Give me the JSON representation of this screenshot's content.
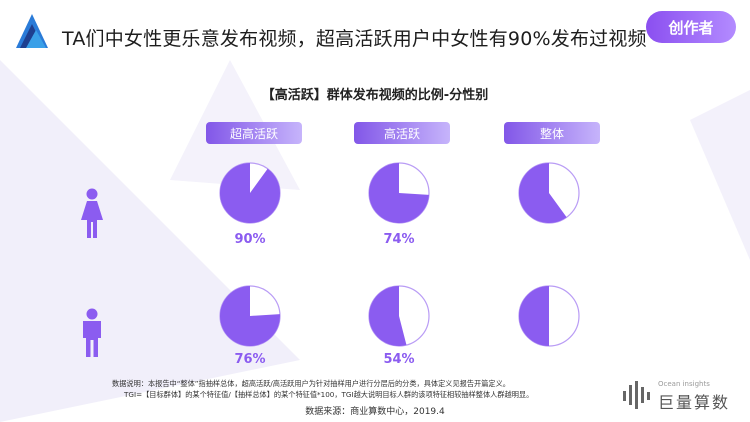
{
  "header": {
    "headline": "TA们中女性更乐意发布视频，超高活跃用户中女性有90%发布过视频",
    "badge": "创作者"
  },
  "chart_data": {
    "type": "pie",
    "title": "【高活跃】群体发布视频的比例-分性别",
    "columns": [
      "超高活跃",
      "高活跃",
      "整体"
    ],
    "rows": [
      {
        "gender": "female-icon",
        "values": [
          90,
          74,
          60
        ],
        "labels": [
          "90%",
          "74%",
          ""
        ]
      },
      {
        "gender": "male-icon",
        "values": [
          76,
          54,
          50
        ],
        "labels": [
          "76%",
          "54%",
          ""
        ]
      }
    ],
    "slice_color": "#8b5cf0",
    "remainder_color": "#ffffff",
    "outline_color": "#b99cf5",
    "label_color": "#8b5cf0"
  },
  "footer": {
    "note_line1": "数据说明：本报告中“整体”指抽样总体，超高活跃/高活跃用户为针对抽样用户进行分层后的分类，具体定义见报告开篇定义。",
    "note_line2": "TGI=【目标群体】的某个特征值/【抽样总体】的某个特征值*100，TGI越大说明目标人群的该项特征相较抽样整体人群越明显。",
    "source": "数据来源：商业算数中心，2019.4",
    "brand_sub": "Ocean insights",
    "brand_name": "巨量算数"
  },
  "colors": {
    "accent": "#8b5cf0",
    "person": "#8b5cf0"
  }
}
